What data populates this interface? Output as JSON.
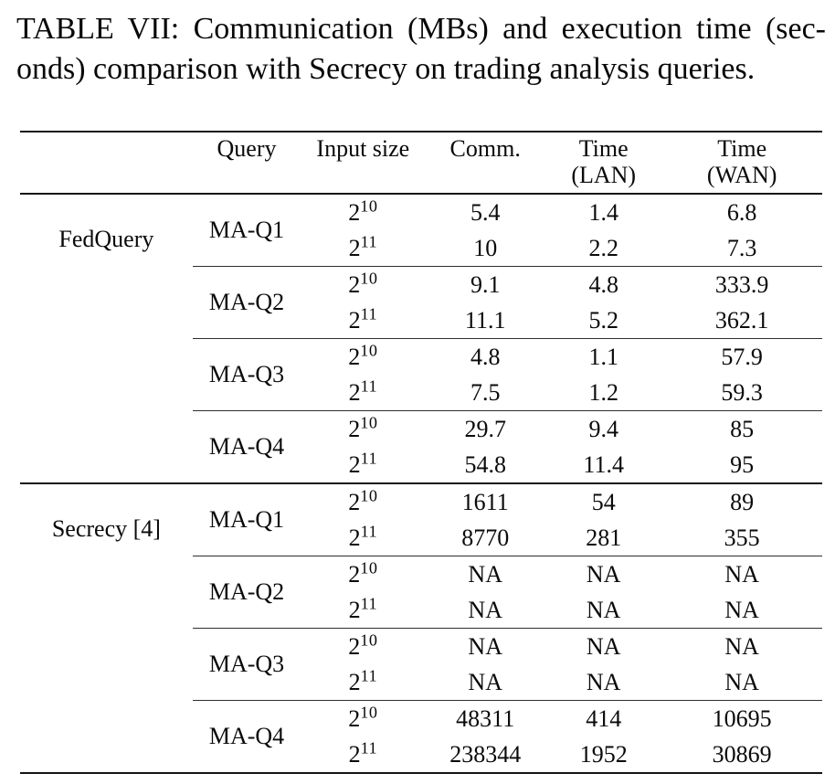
{
  "caption": {
    "line1": "TABLE VII: Communication (MBs) and execution time (sec-",
    "line2": "onds) comparison with Secrecy on trading analysis queries."
  },
  "table": {
    "headers": {
      "system": "",
      "query": "Query",
      "input_size": "Input size",
      "comm": "Comm.",
      "time_lan": "Time",
      "time_lan_sub": "(LAN)",
      "time_wan": "Time",
      "time_wan_sub": "(WAN)"
    },
    "sections": [
      {
        "system": "FedQuery",
        "groups": [
          {
            "query": "MA-Q1",
            "rows": [
              {
                "input_base": "2",
                "input_exp": "10",
                "comm": "5.4",
                "lan": "1.4",
                "wan": "6.8"
              },
              {
                "input_base": "2",
                "input_exp": "11",
                "comm": "10",
                "lan": "2.2",
                "wan": "7.3"
              }
            ]
          },
          {
            "query": "MA-Q2",
            "rows": [
              {
                "input_base": "2",
                "input_exp": "10",
                "comm": "9.1",
                "lan": "4.8",
                "wan": "333.9"
              },
              {
                "input_base": "2",
                "input_exp": "11",
                "comm": "11.1",
                "lan": "5.2",
                "wan": "362.1"
              }
            ]
          },
          {
            "query": "MA-Q3",
            "rows": [
              {
                "input_base": "2",
                "input_exp": "10",
                "comm": "4.8",
                "lan": "1.1",
                "wan": "57.9"
              },
              {
                "input_base": "2",
                "input_exp": "11",
                "comm": "7.5",
                "lan": "1.2",
                "wan": "59.3"
              }
            ]
          },
          {
            "query": "MA-Q4",
            "rows": [
              {
                "input_base": "2",
                "input_exp": "10",
                "comm": "29.7",
                "lan": "9.4",
                "wan": "85"
              },
              {
                "input_base": "2",
                "input_exp": "11",
                "comm": "54.8",
                "lan": "11.4",
                "wan": "95"
              }
            ]
          }
        ]
      },
      {
        "system": "Secrecy [4]",
        "groups": [
          {
            "query": "MA-Q1",
            "rows": [
              {
                "input_base": "2",
                "input_exp": "10",
                "comm": "1611",
                "lan": "54",
                "wan": "89"
              },
              {
                "input_base": "2",
                "input_exp": "11",
                "comm": "8770",
                "lan": "281",
                "wan": "355"
              }
            ]
          },
          {
            "query": "MA-Q2",
            "rows": [
              {
                "input_base": "2",
                "input_exp": "10",
                "comm": "NA",
                "lan": "NA",
                "wan": "NA"
              },
              {
                "input_base": "2",
                "input_exp": "11",
                "comm": "NA",
                "lan": "NA",
                "wan": "NA"
              }
            ]
          },
          {
            "query": "MA-Q3",
            "rows": [
              {
                "input_base": "2",
                "input_exp": "10",
                "comm": "NA",
                "lan": "NA",
                "wan": "NA"
              },
              {
                "input_base": "2",
                "input_exp": "11",
                "comm": "NA",
                "lan": "NA",
                "wan": "NA"
              }
            ]
          },
          {
            "query": "MA-Q4",
            "rows": [
              {
                "input_base": "2",
                "input_exp": "10",
                "comm": "48311",
                "lan": "414",
                "wan": "10695"
              },
              {
                "input_base": "2",
                "input_exp": "11",
                "comm": "238344",
                "lan": "1952",
                "wan": "30869"
              }
            ]
          }
        ]
      }
    ]
  }
}
